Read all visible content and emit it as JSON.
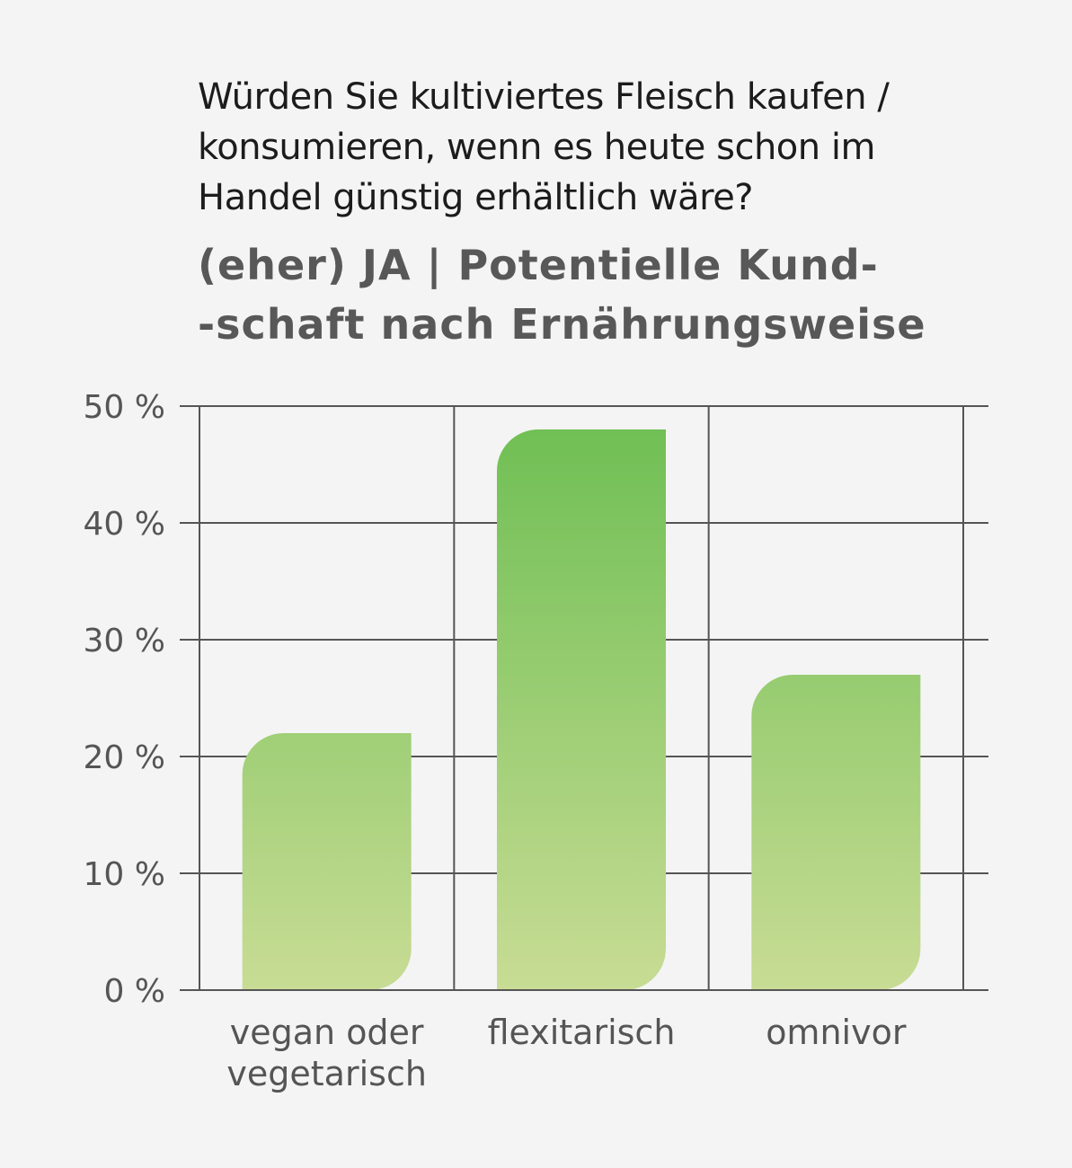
{
  "question": {
    "line1": "Würden Sie kultiviertes Fleisch kaufen /",
    "line2": "konsumieren, wenn es heute schon im",
    "line3": "Handel günstig erhältlich wäre?"
  },
  "headline": {
    "line1": "(eher) JA | Potentielle Kund-",
    "line2": "-schaft nach Ernährungsweise"
  },
  "chart_data": {
    "type": "bar",
    "categories": [
      [
        "vegan oder",
        "vegetarisch"
      ],
      [
        "flexitarisch"
      ],
      [
        "omnivor"
      ]
    ],
    "values": [
      22,
      48,
      27
    ],
    "ylim": [
      0,
      50
    ],
    "yticks": [
      0,
      10,
      20,
      30,
      40,
      50
    ],
    "ytick_labels": [
      "0 %",
      "10 %",
      "20 %",
      "30 %",
      "40 %",
      "50 %"
    ],
    "unit": "%",
    "grid": true,
    "colors": {
      "bar_top": "#6cbe52",
      "bar_bottom": "#c8dc94",
      "grid": "#555555"
    }
  }
}
